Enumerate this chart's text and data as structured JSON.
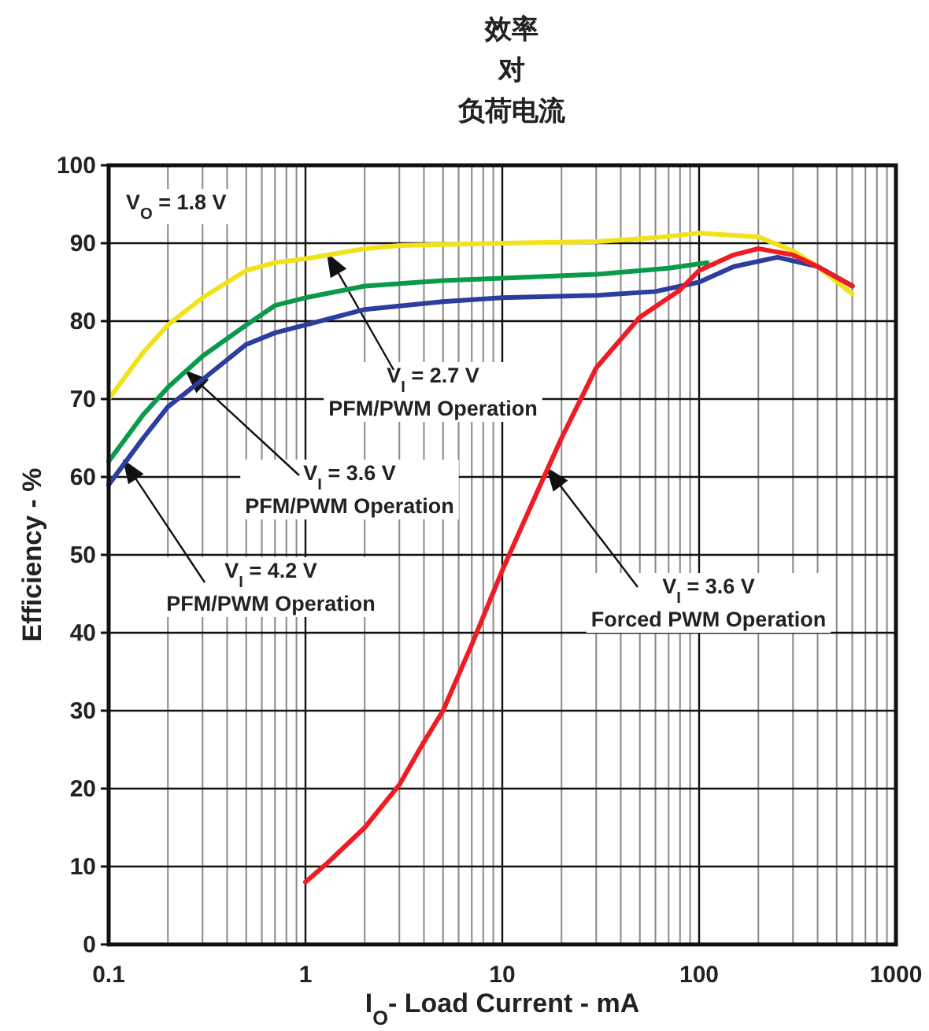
{
  "chart_data": {
    "type": "line",
    "title": "效率对负荷电流",
    "xlabel": "I$_{O}$- Load Current - mA",
    "ylabel": "Efficiency - %",
    "log": "x",
    "grid": true,
    "marker": "none",
    "line_style": "solid",
    "xlim": [
      0.1,
      1000
    ],
    "xticks": [
      0.1,
      1,
      10,
      100,
      1000
    ],
    "ylim": [
      0,
      100
    ],
    "yticks": [
      0,
      10,
      20,
      30,
      40,
      50,
      60,
      70,
      80,
      90,
      100
    ],
    "series": [
      {
        "color": "#f2e21c",
        "x": [
          0.1,
          0.15,
          0.2,
          0.3,
          0.5,
          0.7,
          1,
          2,
          3,
          10,
          30,
          60,
          100,
          150,
          200,
          300,
          400,
          600
        ],
        "values": [
          70,
          76,
          79.5,
          83,
          86.5,
          87.5,
          88,
          89.3,
          89.7,
          90,
          90.2,
          90.7,
          91.3,
          91,
          90.8,
          89,
          87,
          83.5
        ]
      },
      {
        "color": "#0a9a4a",
        "x": [
          0.1,
          0.15,
          0.2,
          0.3,
          0.5,
          0.7,
          1,
          2,
          5,
          10,
          30,
          70,
          110
        ],
        "values": [
          62,
          68,
          71.5,
          75.5,
          79.5,
          82,
          83,
          84.5,
          85.2,
          85.5,
          86,
          86.8,
          87.5
        ]
      },
      {
        "color": "#2b3d9e",
        "x": [
          0.1,
          0.15,
          0.2,
          0.3,
          0.5,
          0.7,
          1,
          2,
          5,
          10,
          30,
          60,
          100,
          150,
          250,
          400,
          600
        ],
        "values": [
          59,
          65,
          69,
          72.5,
          77,
          78.5,
          79.5,
          81.5,
          82.5,
          83,
          83.3,
          83.8,
          85,
          87,
          88.2,
          87,
          84.5
        ]
      },
      {
        "color": "#ee1c25",
        "x": [
          1,
          1.3,
          2,
          3,
          4,
          5,
          7,
          10,
          15,
          20,
          30,
          50,
          80,
          100,
          150,
          200,
          300,
          400,
          600
        ],
        "values": [
          8,
          10.5,
          15,
          20.5,
          26,
          30,
          38.5,
          48,
          58,
          65,
          74,
          80.5,
          84,
          86.5,
          88.5,
          89.3,
          88.5,
          87,
          84.5
        ]
      }
    ],
    "annotations": [
      "V$_{O}$ = 1.8 V",
      "V$_{I}$ = 2.7 V\nPFM/PWM Operation",
      "V$_{I}$ = 3.6 V\nPFM/PWM Operation",
      "V$_{I}$ = 4.2 V\nPFM/PWM Operation",
      "V$_{I}$ = 3.6 V\nForced PWM Operation"
    ]
  }
}
